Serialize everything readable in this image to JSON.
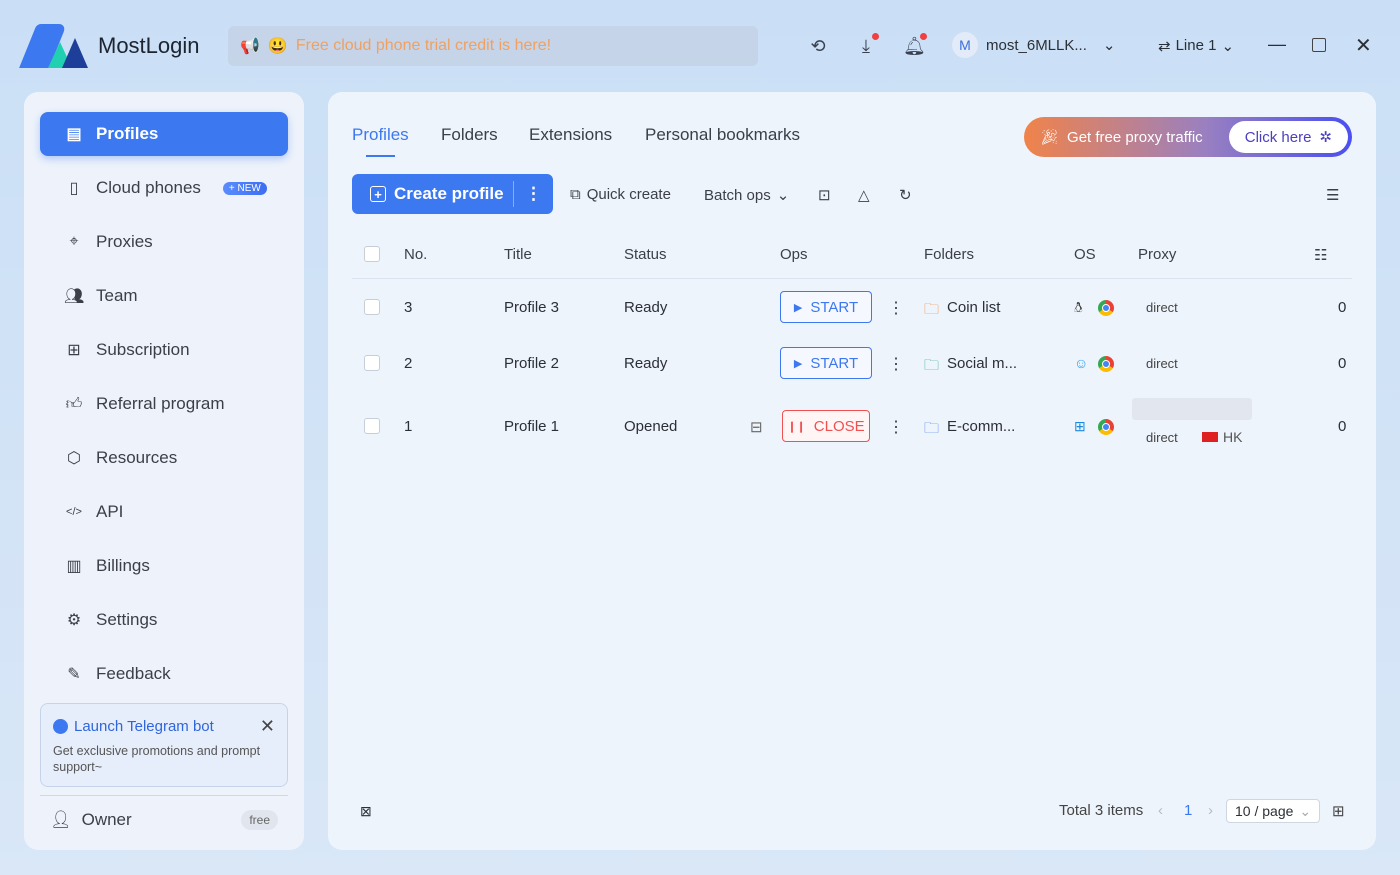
{
  "app": {
    "brand": "MostLogin",
    "notice": "Free cloud phone trial credit is here!",
    "user": "most_6MLLK...",
    "user_initial": "M",
    "line": "Line 1"
  },
  "sidebar": {
    "items": [
      {
        "label": "Profiles",
        "icon": "profile-card-icon",
        "active": true
      },
      {
        "label": "Cloud phones",
        "icon": "phone-icon",
        "badge": "+ NEW"
      },
      {
        "label": "Proxies",
        "icon": "location-pin-icon"
      },
      {
        "label": "Team",
        "icon": "team-icon"
      },
      {
        "label": "Subscription",
        "icon": "bookmark-plus-icon"
      },
      {
        "label": "Referral program",
        "icon": "thumbs-up-icon"
      },
      {
        "label": "Resources",
        "icon": "cube-icon"
      },
      {
        "label": "API",
        "icon": "code-icon"
      },
      {
        "label": "Billings",
        "icon": "clipboard-icon"
      },
      {
        "label": "Settings",
        "icon": "gear-icon"
      },
      {
        "label": "Feedback",
        "icon": "edit-doc-icon"
      }
    ],
    "telegram": {
      "title": "Launch Telegram bot",
      "desc": "Get exclusive promotions and prompt support~"
    },
    "owner": {
      "label": "Owner",
      "plan": "free"
    }
  },
  "main": {
    "tabs": [
      "Profiles",
      "Folders",
      "Extensions",
      "Personal bookmarks"
    ],
    "promo": {
      "text": "Get free proxy traffic",
      "button": "Click here"
    },
    "toolbar": {
      "create": "Create profile",
      "quick": "Quick create",
      "batch": "Batch ops"
    },
    "columns": [
      "No.",
      "Title",
      "Status",
      "Ops",
      "Folders",
      "OS",
      "Proxy"
    ],
    "rows": [
      {
        "no": "3",
        "title": "Profile 3",
        "status": "Ready",
        "op": "START",
        "folder": "Coin list",
        "folder_color": "#f0883a",
        "os": "linux",
        "proxy": "direct",
        "count": "0"
      },
      {
        "no": "2",
        "title": "Profile 2",
        "status": "Ready",
        "op": "START",
        "folder": "Social m...",
        "folder_color": "#2aa88a",
        "os": "macos",
        "proxy": "direct",
        "count": "0"
      },
      {
        "no": "1",
        "title": "Profile 1",
        "status": "Opened",
        "op": "CLOSE",
        "folder": "E-comm...",
        "folder_color": "#3c78f0",
        "os": "windows",
        "proxy": "direct",
        "region": "HK",
        "count": "0"
      }
    ],
    "pagination": {
      "total": "Total 3 items",
      "page": "1",
      "per_page": "10 / page"
    }
  },
  "colors": {
    "accent": "#3c78f0",
    "danger": "#f05050",
    "notice": "#f0a060"
  }
}
